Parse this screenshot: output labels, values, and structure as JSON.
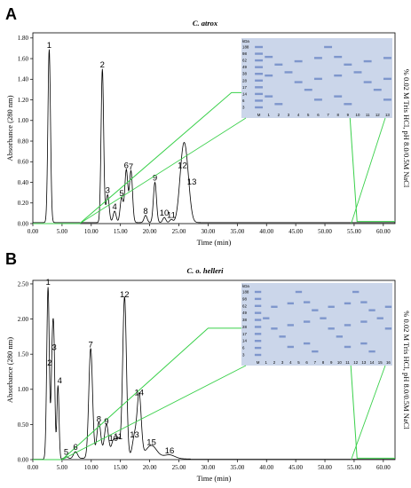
{
  "chart_data": [
    {
      "panel_label": "A",
      "type": "line",
      "title": "C. atrox",
      "xlabel": "Time (min)",
      "ylabel": "Absorbance (280 nm)",
      "y2label": "% 0.02 M Tris HCl, pH 8.0/0.5M NaCl",
      "xlim": [
        0,
        62
      ],
      "ylim": [
        0,
        1.85
      ],
      "x_ticks": [
        "0.00",
        "5.00",
        "10.00",
        "15.00",
        "20.00",
        "25.00",
        "30.00",
        "35.00",
        "40.00",
        "45.00",
        "50.00",
        "55.00",
        "60.00"
      ],
      "y_ticks": [
        "0.00",
        "0.20",
        "0.40",
        "0.60",
        "0.80",
        "1.00",
        "1.20",
        "1.40",
        "1.60",
        "1.80"
      ],
      "peaks": [
        {
          "label": "1",
          "x": 2.8,
          "y": 1.68
        },
        {
          "label": "2",
          "x": 11.9,
          "y": 1.49
        },
        {
          "label": "3",
          "x": 12.8,
          "y": 0.27
        },
        {
          "label": "4",
          "x": 14.0,
          "y": 0.11
        },
        {
          "label": "5",
          "x": 15.2,
          "y": 0.24
        },
        {
          "label": "6",
          "x": 16.0,
          "y": 0.51
        },
        {
          "label": "7",
          "x": 16.8,
          "y": 0.5
        },
        {
          "label": "8",
          "x": 19.3,
          "y": 0.07
        },
        {
          "label": "9",
          "x": 20.9,
          "y": 0.39
        },
        {
          "label": "10",
          "x": 22.5,
          "y": 0.05
        },
        {
          "label": "11",
          "x": 23.7,
          "y": 0.03
        },
        {
          "label": "12",
          "x": 25.6,
          "y": 0.51
        },
        {
          "label": "13",
          "x": 26.3,
          "y": 0.44
        }
      ],
      "gradient": [
        [
          0,
          0
        ],
        [
          8,
          0
        ],
        [
          34,
          1.27
        ],
        [
          54,
          1.27
        ],
        [
          55.5,
          0.02
        ],
        [
          62,
          0.02
        ]
      ],
      "gel": {
        "kda_label": "kDa",
        "markers": [
          "188",
          "98",
          "62",
          "49",
          "38",
          "28",
          "17",
          "14",
          "6",
          "3"
        ],
        "lanes": [
          "M",
          "1",
          "2",
          "3",
          "4",
          "5",
          "6",
          "7",
          "8",
          "9",
          "10",
          "11",
          "12",
          "13"
        ]
      }
    },
    {
      "panel_label": "B",
      "type": "line",
      "title": "C. o. helleri",
      "xlabel": "Time (min)",
      "ylabel": "Absorbance (280 nm)",
      "y2label": "% 0.02 M Tris HCl, pH 8.0/0.5M NaCl",
      "xlim": [
        0,
        62
      ],
      "ylim": [
        0,
        2.55
      ],
      "x_ticks": [
        "0.00",
        "5.00",
        "10.00",
        "15.00",
        "20.00",
        "25.00",
        "30.00",
        "35.00",
        "40.00",
        "45.00",
        "50.00",
        "55.00",
        "60.00"
      ],
      "y_ticks": [
        "0.00",
        "0.50",
        "1.00",
        "1.50",
        "2.00",
        "2.50"
      ],
      "peaks": [
        {
          "label": "1",
          "x": 2.6,
          "y": 2.45
        },
        {
          "label": "2",
          "x": 3.3,
          "y": 1.3
        },
        {
          "label": "3",
          "x": 3.6,
          "y": 1.52
        },
        {
          "label": "4",
          "x": 4.3,
          "y": 1.05
        },
        {
          "label": "5",
          "x": 5.7,
          "y": 0.03
        },
        {
          "label": "6",
          "x": 7.3,
          "y": 0.1
        },
        {
          "label": "7",
          "x": 9.9,
          "y": 1.56
        },
        {
          "label": "8",
          "x": 11.3,
          "y": 0.5
        },
        {
          "label": "9",
          "x": 12.6,
          "y": 0.47
        },
        {
          "label": "10",
          "x": 13.8,
          "y": 0.23
        },
        {
          "label": "11",
          "x": 14.6,
          "y": 0.25
        },
        {
          "label": "12",
          "x": 15.7,
          "y": 2.27
        },
        {
          "label": "13",
          "x": 17.4,
          "y": 0.28
        },
        {
          "label": "14",
          "x": 18.2,
          "y": 0.88
        },
        {
          "label": "15",
          "x": 20.3,
          "y": 0.17
        },
        {
          "label": "16",
          "x": 23.4,
          "y": 0.05
        }
      ],
      "gradient": [
        [
          0,
          0
        ],
        [
          5,
          0
        ],
        [
          30,
          1.87
        ],
        [
          54,
          1.87
        ],
        [
          55.5,
          0.02
        ],
        [
          62,
          0.02
        ]
      ],
      "gel": {
        "kda_label": "kDa",
        "markers": [
          "188",
          "98",
          "62",
          "49",
          "38",
          "28",
          "17",
          "14",
          "6",
          "3"
        ],
        "lanes": [
          "M",
          "1",
          "2",
          "3",
          "4",
          "5",
          "6",
          "7",
          "8",
          "9",
          "10",
          "11",
          "12",
          "13",
          "14",
          "15",
          "16"
        ]
      }
    }
  ],
  "colors": {
    "chromatogram": "#000000",
    "gradient": "#39d04a",
    "gel_background": "#cbd6ea",
    "gel_band": "#3f63b2"
  }
}
